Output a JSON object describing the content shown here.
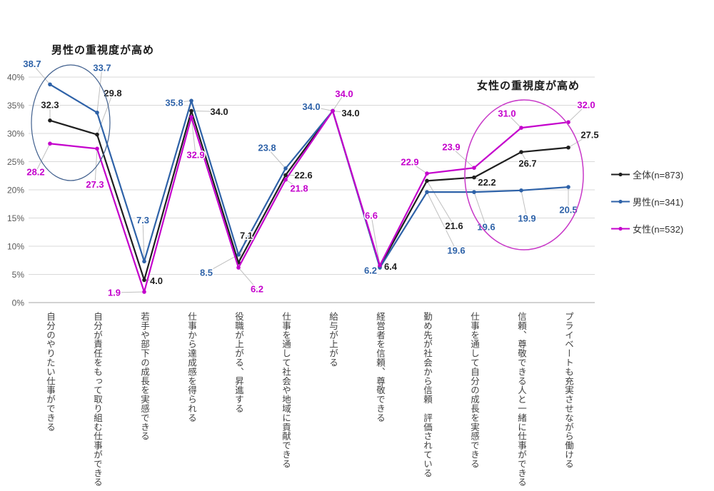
{
  "chart_data": {
    "type": "line",
    "title": "",
    "categories": [
      "自分のやりたい仕事ができる",
      "自分が責任をもって取り組む仕事ができる",
      "若手や部下の成長を実感できる",
      "仕事から達成感を得られる",
      "役職が上がる、昇進する",
      "仕事を通して社会や地域に貢献できる",
      "給与が上がる",
      "経営者を信頼、尊敬できる",
      "勤め先が社会から信頼　評価されている",
      "仕事を通して自分の成長を実感できる",
      "信頼、尊敬できる人と一緒に仕事ができる",
      "プライベートも充実させながら働ける"
    ],
    "series": [
      {
        "name": "全体(n=873)",
        "color": "#1f1f1f",
        "values": [
          32.3,
          29.8,
          4.0,
          34.0,
          7.1,
          22.6,
          34.0,
          6.4,
          21.6,
          22.2,
          26.7,
          27.5
        ],
        "label_offsets": [
          [
            0,
            -22
          ],
          [
            22,
            -58
          ],
          [
            17,
            1
          ],
          [
            39,
            1
          ],
          [
            11,
            -38
          ],
          [
            25,
            0
          ],
          [
            25,
            3
          ],
          [
            15,
            0
          ],
          [
            38,
            63
          ],
          [
            18,
            7
          ],
          [
            9,
            16
          ],
          [
            30,
            -18
          ]
        ]
      },
      {
        "name": "男性(n=341)",
        "color": "#2e62a8",
        "values": [
          38.7,
          33.7,
          7.3,
          35.8,
          8.5,
          23.8,
          34.0,
          6.2,
          19.6,
          19.6,
          19.9,
          20.5
        ],
        "label_offsets": [
          [
            -25,
            -29
          ],
          [
            7,
            -63
          ],
          [
            -2,
            -58
          ],
          [
            -24,
            3
          ],
          [
            -45,
            25
          ],
          [
            -26,
            -29
          ],
          [
            -30,
            -6
          ],
          [
            -13,
            4
          ],
          [
            41,
            82
          ],
          [
            17,
            49
          ],
          [
            8,
            39
          ],
          [
            0,
            32
          ]
        ]
      },
      {
        "name": "女性(n=532)",
        "color": "#c400cc",
        "values": [
          28.2,
          27.3,
          1.9,
          32.9,
          6.2,
          21.8,
          34.0,
          6.6,
          22.9,
          23.9,
          31.0,
          32.0
        ],
        "label_offsets": [
          [
            -20,
            40
          ],
          [
            -3,
            50
          ],
          [
            -42,
            1
          ],
          [
            6,
            53
          ],
          [
            26,
            30
          ],
          [
            19,
            12
          ],
          [
            16,
            -24
          ],
          [
            -12,
            -70
          ],
          [
            -24,
            -16
          ],
          [
            -32,
            -29
          ],
          [
            -20,
            -20
          ],
          [
            25,
            -24
          ]
        ]
      }
    ],
    "ylim": [
      0,
      40
    ],
    "ytick_step": 5,
    "ytick_labels": [
      "0%",
      "5%",
      "10%",
      "15%",
      "20%",
      "25%",
      "30%",
      "35%",
      "40%"
    ],
    "grid": true,
    "legend_position": "right",
    "annotations": [
      {
        "label": "男性の重視度が高め",
        "color": "#41608e"
      },
      {
        "label": "女性の重視度が高め",
        "color": "#c838c8"
      }
    ],
    "colors": {
      "gridline": "#d9d9d9",
      "axis_line": "#a6a6a6",
      "leader_line": "#bfbfbf"
    }
  }
}
